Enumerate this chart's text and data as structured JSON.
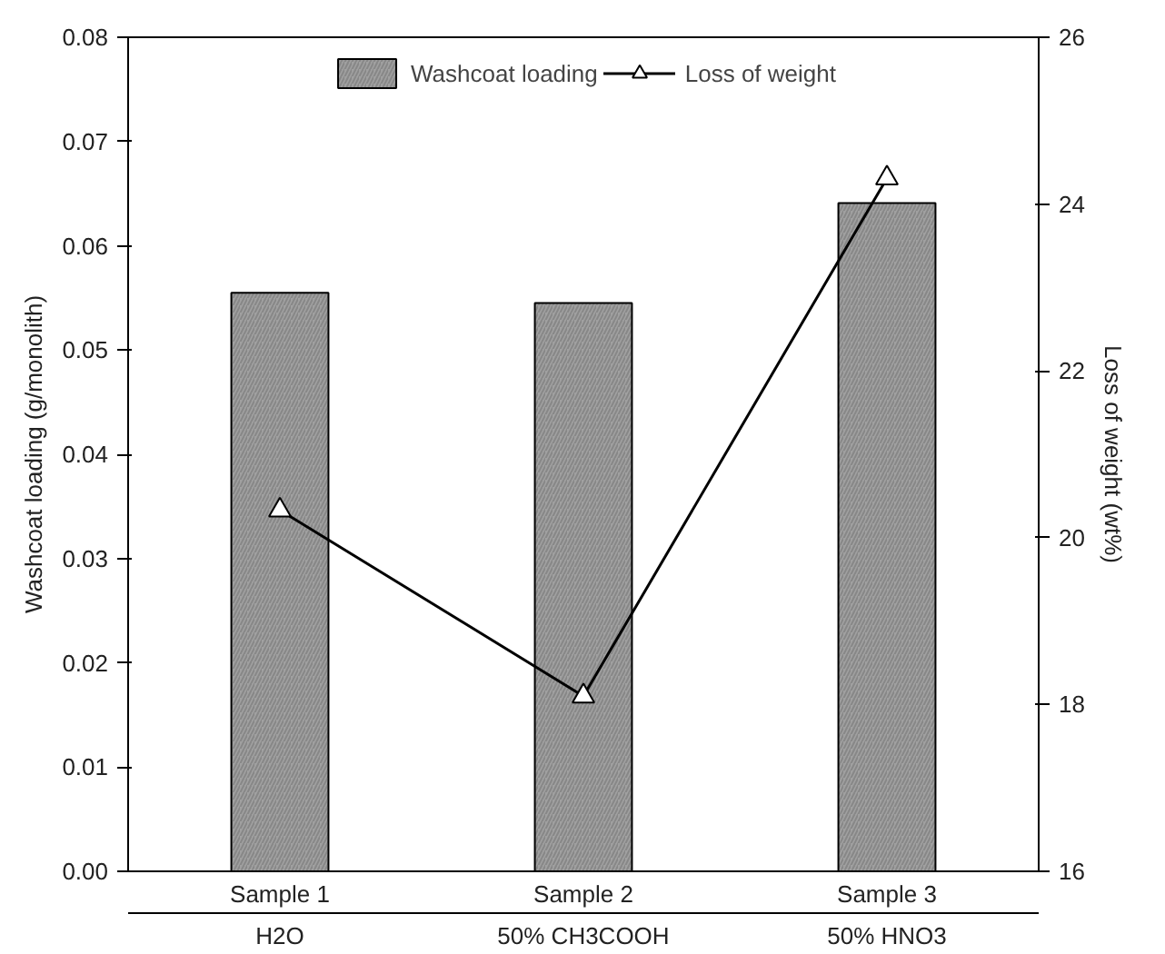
{
  "chart_data": {
    "type": "bar",
    "categories": [
      "Sample 1",
      "Sample 2",
      "Sample 3"
    ],
    "annotations": [
      "H2O",
      "50% CH3COOH",
      "50% HNO3"
    ],
    "ylabel": "Washcoat loading (g/monolith)",
    "y2label": "Loss of weight (wt%)",
    "ylim": [
      0,
      0.08
    ],
    "yticks": [
      {
        "value": 0,
        "label": "0.00"
      },
      0.01,
      0.02,
      0.03,
      0.04,
      0.05,
      0.06,
      0.07,
      0.08
    ],
    "y2lim": [
      16,
      26
    ],
    "y2ticks": [
      16,
      18,
      20,
      22,
      24,
      26
    ],
    "series": [
      {
        "name": "Washcoat loading",
        "color": "#a0a0a0",
        "values": [
          0.0555,
          0.0545,
          0.0641
        ]
      },
      {
        "name": "Loss of weight",
        "type": "line",
        "axis": "y2",
        "color": "#000000",
        "marker": "triangle",
        "values": [
          20.33,
          18.1,
          24.31
        ]
      }
    ],
    "legend": "top",
    "grid": false
  }
}
